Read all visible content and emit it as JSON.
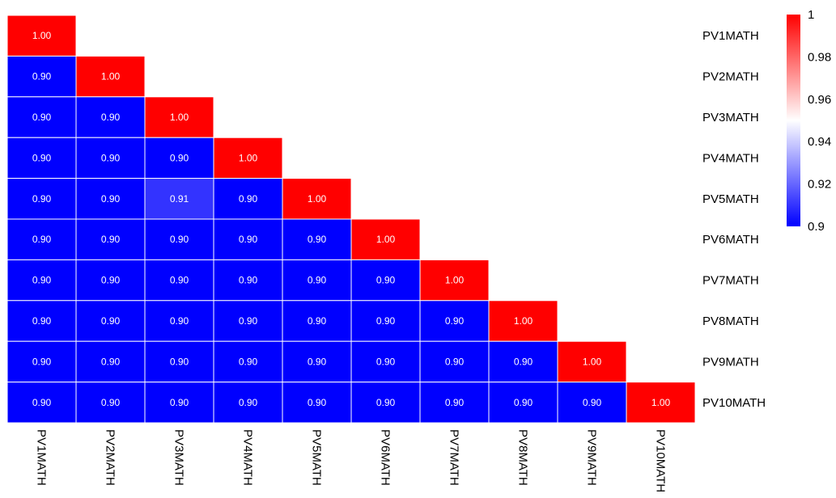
{
  "chart_data": {
    "type": "heatmap",
    "title": "",
    "triangle": "lower",
    "rows": [
      "PV1MATH",
      "PV2MATH",
      "PV3MATH",
      "PV4MATH",
      "PV5MATH",
      "PV6MATH",
      "PV7MATH",
      "PV8MATH",
      "PV9MATH",
      "PV10MATH"
    ],
    "columns": [
      "PV1MATH",
      "PV2MATH",
      "PV3MATH",
      "PV4MATH",
      "PV5MATH",
      "PV6MATH",
      "PV7MATH",
      "PV8MATH",
      "PV9MATH",
      "PV10MATH"
    ],
    "values": [
      [
        1.0
      ],
      [
        0.9,
        1.0
      ],
      [
        0.9,
        0.9,
        1.0
      ],
      [
        0.9,
        0.9,
        0.9,
        1.0
      ],
      [
        0.9,
        0.9,
        0.91,
        0.9,
        1.0
      ],
      [
        0.9,
        0.9,
        0.9,
        0.9,
        0.9,
        1.0
      ],
      [
        0.9,
        0.9,
        0.9,
        0.9,
        0.9,
        0.9,
        1.0
      ],
      [
        0.9,
        0.9,
        0.9,
        0.9,
        0.9,
        0.9,
        0.9,
        1.0
      ],
      [
        0.9,
        0.9,
        0.9,
        0.9,
        0.9,
        0.9,
        0.9,
        0.9,
        1.0
      ],
      [
        0.9,
        0.9,
        0.9,
        0.9,
        0.9,
        0.9,
        0.9,
        0.9,
        0.9,
        1.0
      ]
    ],
    "value_format": "2 decimals",
    "color_scale": {
      "min": 0.9,
      "mid": 0.95,
      "max": 1.0,
      "low_color": "#0000ff",
      "mid_color": "#ffffff",
      "high_color": "#ff0000"
    },
    "legend": {
      "ticks": [
        "1",
        "0.98",
        "0.96",
        "0.94",
        "0.92",
        "0.9"
      ],
      "tick_values": [
        1.0,
        0.98,
        0.96,
        0.94,
        0.92,
        0.9
      ],
      "placement": "right"
    },
    "row_labels_side": "right",
    "column_labels_side": "bottom",
    "cell_border_color": "#ffffff"
  }
}
